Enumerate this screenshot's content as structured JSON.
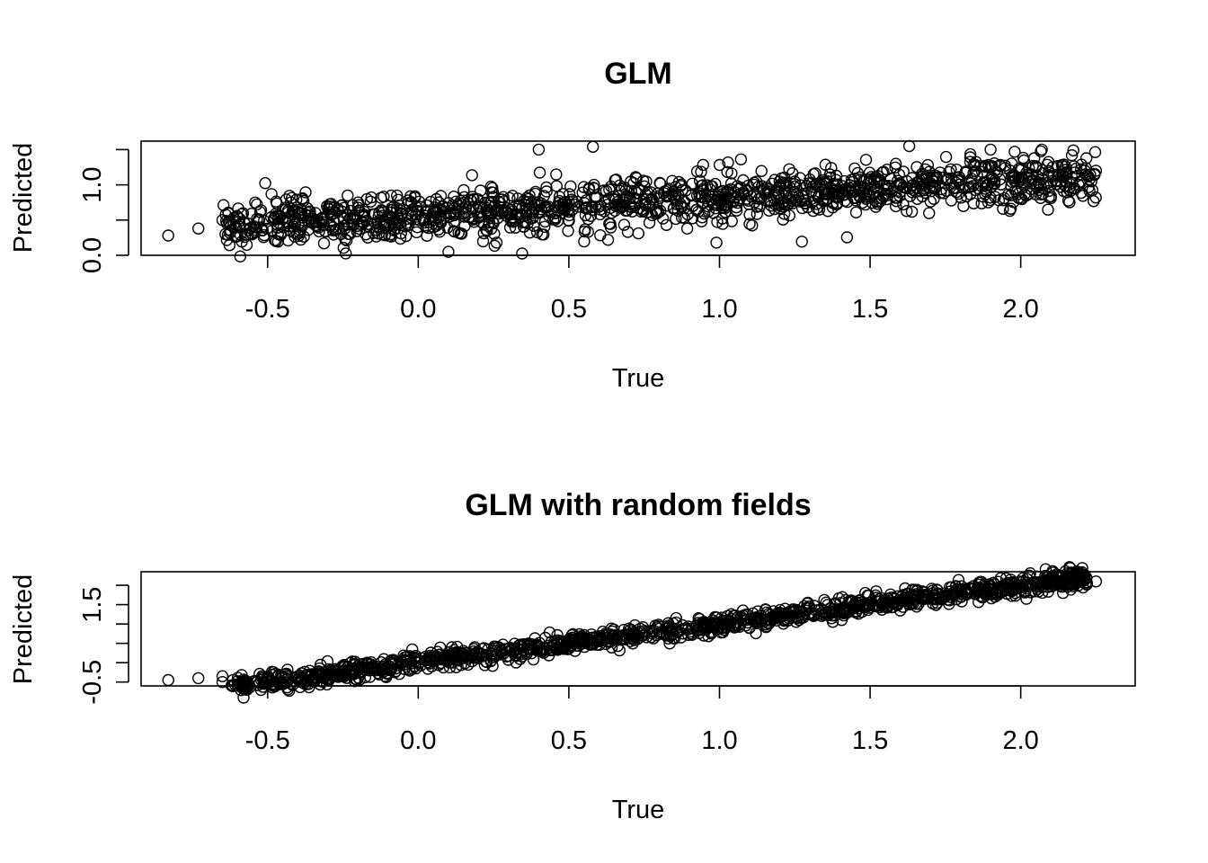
{
  "chart_data": [
    {
      "type": "scatter",
      "title": "GLM",
      "xlabel": "True",
      "ylabel": "Predicted",
      "xlim": [
        -0.92,
        2.38
      ],
      "ylim": [
        0.0,
        1.62
      ],
      "xticks": [
        -0.5,
        0.0,
        0.5,
        1.0,
        1.5,
        2.0
      ],
      "xtick_labels": [
        "-0.5",
        "0.0",
        "0.5",
        "1.0",
        "1.5",
        "2.0"
      ],
      "yticks": [
        0.0,
        0.5,
        1.0,
        1.5
      ],
      "ytick_labels": [
        "0.0",
        "",
        "1.0",
        ""
      ],
      "grid": false,
      "marker": "open-circle",
      "trend": {
        "intercept": 0.58,
        "slope": 0.24,
        "spread": 0.3
      },
      "x_range": [
        -0.65,
        2.25
      ],
      "points": [
        {
          "x": -0.83,
          "y": 0.28
        },
        {
          "x": -0.73,
          "y": 0.38
        },
        {
          "x": -0.65,
          "y": 0.5
        },
        {
          "x": -0.64,
          "y": 0.3
        },
        {
          "x": -0.6,
          "y": 0.27
        },
        {
          "x": -0.6,
          "y": 0.55
        },
        {
          "x": 0.1,
          "y": 0.05
        },
        {
          "x": 0.26,
          "y": 0.18
        },
        {
          "x": 0.4,
          "y": 1.5
        },
        {
          "x": 0.58,
          "y": 1.54
        },
        {
          "x": 0.99,
          "y": 0.18
        },
        {
          "x": 1.63,
          "y": 1.55
        },
        {
          "x": 1.9,
          "y": 1.5
        },
        {
          "x": 1.98,
          "y": 1.47
        },
        {
          "x": 2.07,
          "y": 1.5
        },
        {
          "x": 2.17,
          "y": 1.42
        },
        {
          "x": 2.2,
          "y": 1.22
        },
        {
          "x": 2.25,
          "y": 1.2
        },
        {
          "x": 2.12,
          "y": 1.06
        },
        {
          "x": 0.63,
          "y": 0.22
        }
      ]
    },
    {
      "type": "scatter",
      "title": "GLM with random fields",
      "xlabel": "True",
      "ylabel": "Predicted",
      "xlim": [
        -0.92,
        2.38
      ],
      "ylim": [
        -0.6,
        2.35
      ],
      "xticks": [
        -0.5,
        0.0,
        0.5,
        1.0,
        1.5,
        2.0
      ],
      "xtick_labels": [
        "-0.5",
        "0.0",
        "0.5",
        "1.0",
        "1.5",
        "2.0"
      ],
      "yticks": [
        -0.5,
        0.0,
        0.5,
        1.0,
        1.5,
        2.0
      ],
      "ytick_labels": [
        "-0.5",
        "",
        "",
        "",
        "1.5",
        ""
      ],
      "grid": false,
      "marker": "open-circle",
      "trend": {
        "intercept": 0.0,
        "slope": 1.0,
        "spread": 0.22
      },
      "x_range": [
        -0.62,
        2.22
      ],
      "points": [
        {
          "x": -0.83,
          "y": -0.45
        },
        {
          "x": -0.73,
          "y": -0.4
        },
        {
          "x": -0.65,
          "y": -0.5
        },
        {
          "x": -0.65,
          "y": -0.35
        },
        {
          "x": -0.6,
          "y": -0.48
        },
        {
          "x": -0.3,
          "y": -0.42
        },
        {
          "x": -0.17,
          "y": 0.0
        },
        {
          "x": 2.17,
          "y": 2.3
        },
        {
          "x": 2.2,
          "y": 2.3
        },
        {
          "x": 2.17,
          "y": 2.15
        },
        {
          "x": 2.22,
          "y": 2.05
        },
        {
          "x": 2.25,
          "y": 2.1
        },
        {
          "x": 2.07,
          "y": 1.95
        }
      ]
    }
  ]
}
